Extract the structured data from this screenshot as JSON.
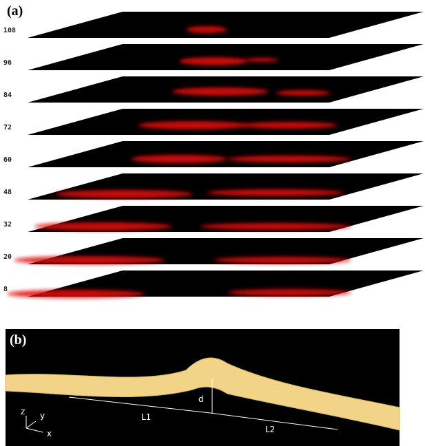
{
  "panel_a": {
    "label": "(a)",
    "slices": [
      "108",
      "96",
      "84",
      "72",
      "60",
      "48",
      "32",
      "20",
      "8"
    ]
  },
  "panel_b": {
    "label": "(b)",
    "axes": {
      "z": "z",
      "y": "y",
      "x": "x"
    },
    "annotations": {
      "d": "d",
      "l1": "L1",
      "l2": "L2"
    }
  }
}
